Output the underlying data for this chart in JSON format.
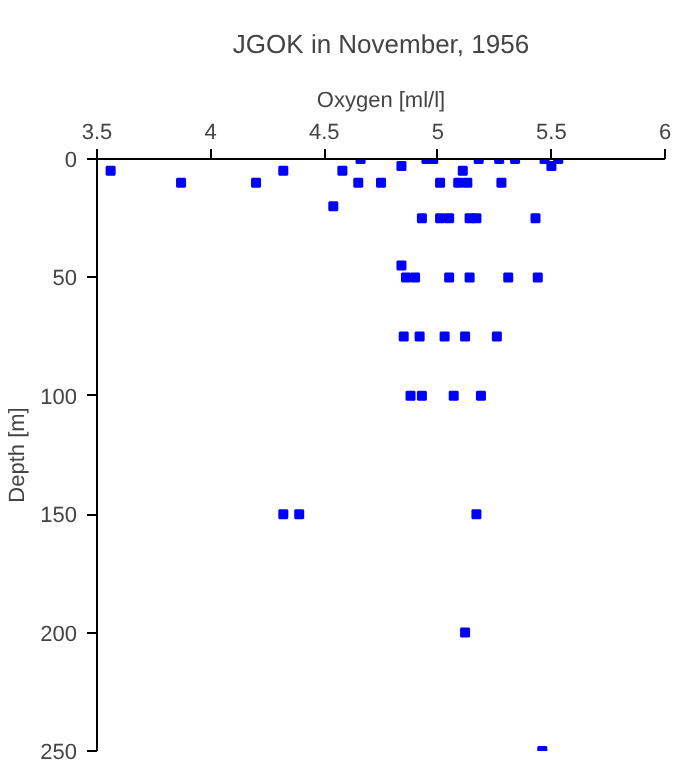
{
  "chart_data": {
    "type": "scatter",
    "title": "JGOK in November, 1956",
    "xlabel": "Oxygen [ml/l]",
    "ylabel": "Depth [m]",
    "xlim": [
      3.5,
      6
    ],
    "xticks": [
      3.5,
      4,
      4.5,
      5,
      5.5,
      6
    ],
    "ylim": [
      250,
      0
    ],
    "yticks": [
      0,
      50,
      100,
      150,
      200,
      250
    ],
    "grid": false,
    "marker": "square",
    "series": [
      {
        "color": "#0000ff",
        "x": [
          4.66,
          4.95,
          4.98,
          5.18,
          5.27,
          5.34,
          5.47,
          5.53,
          4.84,
          5.5,
          3.56,
          4.58,
          5.11,
          4.32,
          3.87,
          4.2,
          4.65,
          4.75,
          5.01,
          5.09,
          5.13,
          5.28,
          4.54,
          4.93,
          5.01,
          5.05,
          5.14,
          5.17,
          5.43,
          4.84,
          4.86,
          4.9,
          5.05,
          5.14,
          5.31,
          5.44,
          4.85,
          4.92,
          5.03,
          5.12,
          5.26,
          4.88,
          4.93,
          5.07,
          5.19,
          4.32,
          4.39,
          5.17,
          5.12,
          5.46
        ],
        "values": [
          0,
          0,
          0,
          0,
          0,
          0,
          0,
          0,
          3,
          3,
          5,
          5,
          5,
          5,
          10,
          10,
          10,
          10,
          10,
          10,
          10,
          10,
          20,
          25,
          25,
          25,
          25,
          25,
          25,
          45,
          50,
          50,
          50,
          50,
          50,
          50,
          75,
          75,
          75,
          75,
          75,
          100,
          100,
          100,
          100,
          150,
          150,
          150,
          200,
          250
        ]
      }
    ]
  }
}
